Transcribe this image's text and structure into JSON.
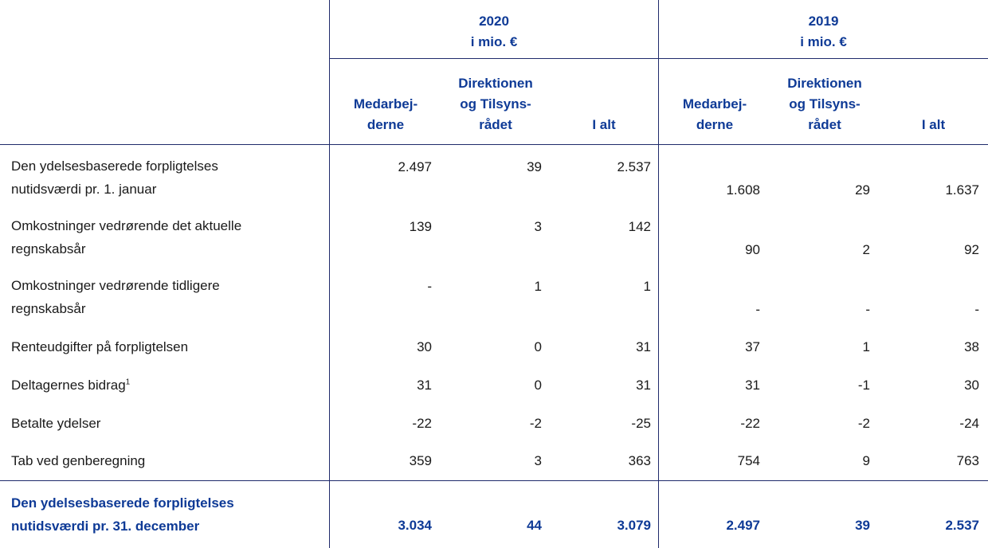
{
  "years": [
    {
      "year": "2020",
      "unit": "i mio. €"
    },
    {
      "year": "2019",
      "unit": "i mio. €"
    }
  ],
  "columns": [
    {
      "l1": "Medarbej-",
      "l2": "derne"
    },
    {
      "l1": "Direktionen",
      "l2": "og Tilsyns-",
      "l3": "rådet"
    },
    {
      "l1": "I alt"
    },
    {
      "l1": "Medarbej-",
      "l2": "derne"
    },
    {
      "l1": "Direktionen",
      "l2": "og Tilsyns-",
      "l3": "rådet"
    },
    {
      "l1": "I alt"
    }
  ],
  "rows": [
    {
      "label1": "Den ydelsesbaserede forpligtelses",
      "label2": "nutidsværdi pr. 1. januar",
      "v2020": [
        "2.497",
        "39",
        "2.537"
      ],
      "v2019": [
        "1.608",
        "29",
        "1.637"
      ]
    },
    {
      "label1": "Omkostninger vedrørende det aktuelle",
      "label2": "regnskabsår",
      "v2020": [
        "139",
        "3",
        "142"
      ],
      "v2019": [
        "90",
        "2",
        "92"
      ]
    },
    {
      "label1": "Omkostninger vedrørende tidligere",
      "label2": "regnskabsår",
      "v2020": [
        "-",
        "1",
        "1"
      ],
      "v2019": [
        "-",
        "-",
        "-"
      ]
    },
    {
      "label1": "Renteudgifter på forpligtelsen",
      "v2020": [
        "30",
        "0",
        "31"
      ],
      "v2019": [
        "37",
        "1",
        "38"
      ]
    },
    {
      "label1": "Deltagernes bidrag",
      "sup": "1",
      "v2020": [
        "31",
        "0",
        "31"
      ],
      "v2019": [
        "31",
        "-1",
        "30"
      ]
    },
    {
      "label1": "Betalte ydelser",
      "v2020": [
        "-22",
        "-2",
        "-25"
      ],
      "v2019": [
        "-22",
        "-2",
        "-24"
      ]
    },
    {
      "label1": "Tab ved genberegning",
      "v2020": [
        "359",
        "3",
        "363"
      ],
      "v2019": [
        "754",
        "9",
        "763"
      ]
    }
  ],
  "total": {
    "label1": "Den ydelsesbaserede forpligtelses",
    "label2": "nutidsværdi pr. 31. december",
    "v2020": [
      "3.034",
      "44",
      "3.079"
    ],
    "v2019": [
      "2.497",
      "39",
      "2.537"
    ]
  }
}
